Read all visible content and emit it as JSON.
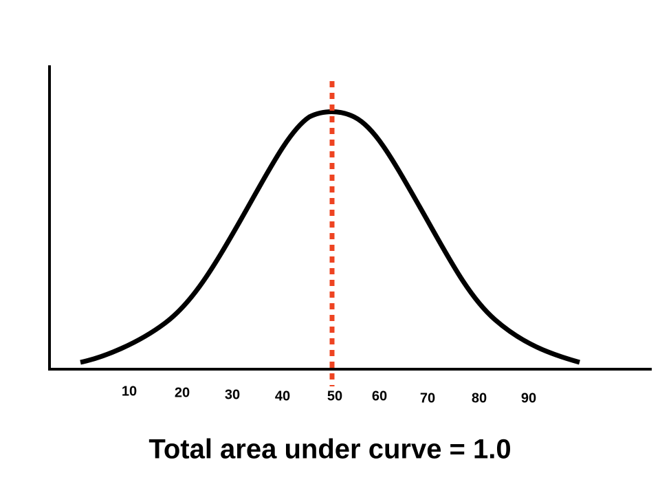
{
  "axis_labels": [
    10,
    20,
    30,
    40,
    50,
    60,
    70,
    80,
    90
  ],
  "caption": "Total area under curve = 1.0"
}
